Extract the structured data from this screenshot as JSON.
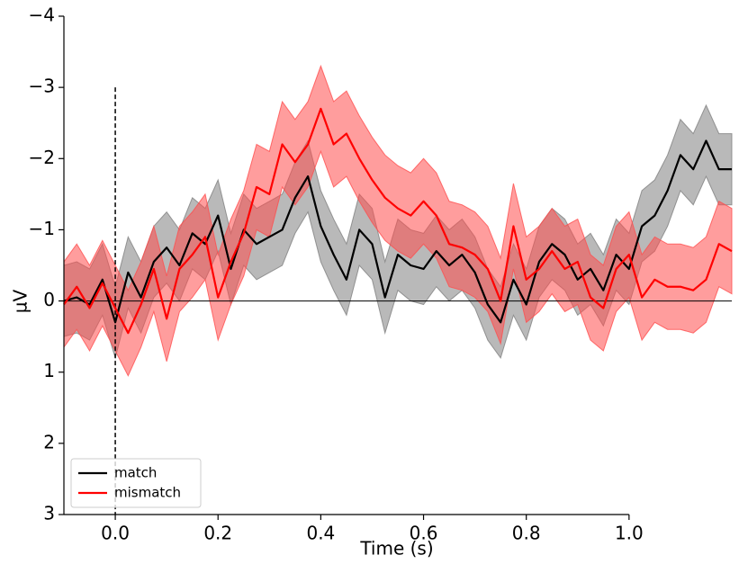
{
  "chart_data": {
    "type": "line",
    "xlabel": "Time (s)",
    "ylabel": "µV",
    "xlim": [
      -0.1,
      1.2
    ],
    "ylim": [
      3,
      -4
    ],
    "xticks": [
      {
        "value": 0,
        "label": "0.0"
      },
      0.2,
      0.4,
      0.6,
      0.8,
      {
        "value": 1,
        "label": "1.0"
      }
    ],
    "yticks": [
      {
        "value": -4,
        "label": "−4"
      },
      {
        "value": -3,
        "label": "−3"
      },
      {
        "value": -2,
        "label": "−2"
      },
      {
        "value": -1,
        "label": "−1"
      },
      0,
      1,
      2,
      3
    ],
    "hline": 0,
    "vline_x": 0,
    "vline_top": -3,
    "legend": "lower left",
    "x": [
      -0.1,
      -0.075,
      -0.05,
      -0.025,
      0,
      0.025,
      0.05,
      0.075,
      0.1,
      0.125,
      0.15,
      0.175,
      0.2,
      0.225,
      0.25,
      0.275,
      0.3,
      0.325,
      0.35,
      0.375,
      0.4,
      0.425,
      0.45,
      0.475,
      0.5,
      0.525,
      0.55,
      0.575,
      0.6,
      0.625,
      0.65,
      0.675,
      0.7,
      0.725,
      0.75,
      0.775,
      0.8,
      0.825,
      0.85,
      0.875,
      0.9,
      0.925,
      0.95,
      0.975,
      1,
      1.025,
      1.05,
      1.075,
      1.1,
      1.125,
      1.15,
      1.175,
      1.2
    ],
    "series": [
      {
        "name": "match",
        "color": "#000000",
        "band_color": "#808080",
        "values": [
          0,
          -0.05,
          0.05,
          -0.3,
          0.3,
          -0.4,
          -0.05,
          -0.55,
          -0.75,
          -0.5,
          -0.95,
          -0.8,
          -1.2,
          -0.45,
          -1.0,
          -0.8,
          -0.9,
          -1.0,
          -1.45,
          -1.75,
          -1.05,
          -0.65,
          -0.3,
          -1.0,
          -0.8,
          -0.05,
          -0.65,
          -0.5,
          -0.45,
          -0.7,
          -0.5,
          -0.65,
          -0.4,
          0.05,
          0.3,
          -0.3,
          0.05,
          -0.55,
          -0.8,
          -0.65,
          -0.3,
          -0.45,
          -0.15,
          -0.65,
          -0.45,
          -1.05,
          -1.2,
          -1.55,
          -2.05,
          -1.85,
          -2.25,
          -1.85,
          -1.85
        ],
        "ci_lower": [
          -0.5,
          -0.55,
          -0.45,
          -0.8,
          -0.2,
          -0.9,
          -0.55,
          -1.05,
          -1.25,
          -1.0,
          -1.45,
          -1.3,
          -1.7,
          -0.95,
          -1.5,
          -1.3,
          -1.4,
          -1.5,
          -1.95,
          -2.25,
          -1.55,
          -1.15,
          -0.8,
          -1.5,
          -1.3,
          -0.55,
          -1.15,
          -1.0,
          -0.95,
          -1.2,
          -1.0,
          -1.15,
          -0.9,
          -0.45,
          -0.2,
          -0.8,
          -0.45,
          -1.05,
          -1.3,
          -1.15,
          -0.8,
          -0.95,
          -0.65,
          -1.15,
          -0.95,
          -1.55,
          -1.7,
          -2.05,
          -2.55,
          -2.35,
          -2.75,
          -2.35,
          -2.35
        ],
        "ci_upper": [
          0.5,
          0.45,
          0.55,
          0.2,
          0.8,
          0.1,
          0.45,
          -0.05,
          -0.25,
          0,
          -0.45,
          -0.3,
          -0.7,
          0.05,
          -0.5,
          -0.3,
          -0.4,
          -0.5,
          -0.95,
          -1.25,
          -0.55,
          -0.15,
          0.2,
          -0.5,
          -0.3,
          0.45,
          -0.15,
          0,
          0.05,
          -0.2,
          0,
          -0.15,
          0.1,
          0.55,
          0.8,
          0.2,
          0.55,
          -0.05,
          -0.3,
          -0.15,
          0.2,
          0.05,
          0.35,
          -0.15,
          0.05,
          -0.55,
          -0.7,
          -1.05,
          -1.55,
          -1.35,
          -1.75,
          -1.35,
          -1.35
        ]
      },
      {
        "name": "mismatch",
        "color": "#ff0000",
        "band_color": "#ff4d4d",
        "values": [
          0.05,
          -0.2,
          0.1,
          -0.25,
          0.1,
          0.45,
          0.05,
          -0.45,
          0.25,
          -0.45,
          -0.65,
          -0.9,
          -0.05,
          -0.55,
          -0.95,
          -1.6,
          -1.5,
          -2.2,
          -1.95,
          -2.2,
          -2.7,
          -2.2,
          -2.35,
          -2.0,
          -1.7,
          -1.45,
          -1.3,
          -1.2,
          -1.4,
          -1.2,
          -0.8,
          -0.75,
          -0.65,
          -0.45,
          0,
          -1.05,
          -0.3,
          -0.45,
          -0.7,
          -0.45,
          -0.55,
          -0.05,
          0.1,
          -0.45,
          -0.65,
          -0.05,
          -0.3,
          -0.2,
          -0.2,
          -0.15,
          -0.3,
          -0.8,
          -0.7
        ],
        "ci_lower": [
          -0.55,
          -0.8,
          -0.5,
          -0.85,
          -0.5,
          -0.15,
          -0.55,
          -1.05,
          -0.35,
          -1.05,
          -1.25,
          -1.5,
          -0.65,
          -1.15,
          -1.55,
          -2.2,
          -2.1,
          -2.8,
          -2.55,
          -2.8,
          -3.3,
          -2.8,
          -2.95,
          -2.6,
          -2.3,
          -2.05,
          -1.9,
          -1.8,
          -2.0,
          -1.8,
          -1.4,
          -1.35,
          -1.25,
          -1.05,
          -0.6,
          -1.65,
          -0.9,
          -1.05,
          -1.3,
          -1.05,
          -1.15,
          -0.65,
          -0.5,
          -1.05,
          -1.25,
          -0.65,
          -0.9,
          -0.8,
          -0.8,
          -0.75,
          -0.9,
          -1.4,
          -1.3
        ],
        "ci_upper": [
          0.65,
          0.4,
          0.7,
          0.35,
          0.7,
          1.05,
          0.65,
          0.15,
          0.85,
          0.15,
          -0.05,
          -0.3,
          0.55,
          0.05,
          -0.35,
          -1.0,
          -0.9,
          -1.6,
          -1.35,
          -1.6,
          -2.1,
          -1.6,
          -1.75,
          -1.4,
          -1.1,
          -0.85,
          -0.7,
          -0.6,
          -0.8,
          -0.6,
          -0.2,
          -0.15,
          -0.05,
          0.15,
          0.6,
          -0.45,
          0.3,
          0.15,
          -0.1,
          0.15,
          0.05,
          0.55,
          0.7,
          0.15,
          -0.05,
          0.55,
          0.3,
          0.4,
          0.4,
          0.45,
          0.3,
          -0.2,
          -0.1
        ]
      }
    ]
  }
}
